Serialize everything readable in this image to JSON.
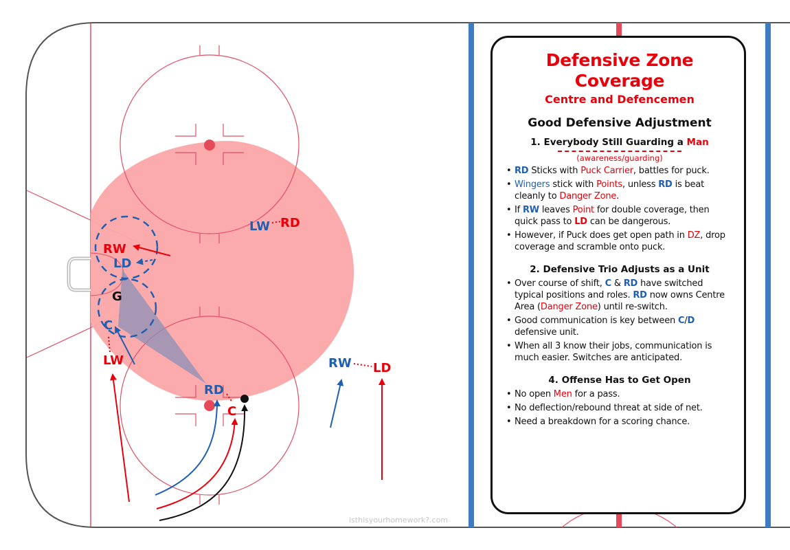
{
  "panel": {
    "title": "Defensive Zone Coverage",
    "subtitle": "Centre and Defencemen",
    "heading": "Good Defensive Adjustment",
    "section1": {
      "prefix": "1. Everybody Still Guarding a ",
      "highlight": "Man",
      "note": "(awareness/guarding)",
      "b1": {
        "t1": "RD",
        "t2": " Sticks with ",
        "t3": "Puck Carrier",
        "t4": ", battles for puck."
      },
      "b2": {
        "t1": "Wingers",
        "t2": " stick with ",
        "t3": "Points",
        "t4": ", unless ",
        "t5": "RD",
        "t6": " is beat cleanly to ",
        "t7": "Danger Zone",
        "t8": "."
      },
      "b3": {
        "t1": "If ",
        "t2": "RW",
        "t3": " leaves ",
        "t4": "Point",
        "t5": " for double coverage, then quick pass to ",
        "t6": "LD",
        "t7": " can be dangerous."
      },
      "b4": {
        "t1": "However, if Puck does get open path in ",
        "t2": "DZ",
        "t3": ", drop coverage and scramble onto puck."
      }
    },
    "section2": {
      "title": "2. Defensive Trio Adjusts as a Unit",
      "b1": {
        "t1": "Over course of shift, ",
        "t2": "C",
        "t3": " & ",
        "t4": "RD",
        "t5": " have switched typical positions and roles. ",
        "t6": "RD",
        "t7": " now owns Centre Area (",
        "t8": "Danger Zone",
        "t9": ") until re-switch."
      },
      "b2": {
        "t1": "Good communication is key between ",
        "t2": "C",
        "t3": "/",
        "t4": "D",
        "t5": " defensive unit."
      },
      "b3": "When all 3 know their jobs, communication is much easier. Switches are anticipated."
    },
    "section4": {
      "title": "4. Offense Has to Get Open",
      "b1": {
        "t1": "No open ",
        "t2": "Men",
        "t3": " for a pass."
      },
      "b2": "No deflection/rebound threat at side of net.",
      "b3": "Need a breakdown for a scoring chance."
    }
  },
  "players": {
    "rw_red": "RW",
    "ld_blue": "LD",
    "goalie": "G",
    "c_blue": "C",
    "lw_red": "LW",
    "lw_blue": "LW",
    "rd_red": "RD",
    "rd_blue": "RD",
    "c_red": "C",
    "rw_blue": "RW",
    "ld_red": "LD"
  },
  "watermark": "isthisyourhomework?.com",
  "colors": {
    "red": "#e8000b",
    "blue": "#1f5fb1",
    "rink_line": "#e05064",
    "blue_line": "#3a7dc0",
    "danger_zone": "#fca6a8",
    "triangle": "#8c8fb8"
  }
}
